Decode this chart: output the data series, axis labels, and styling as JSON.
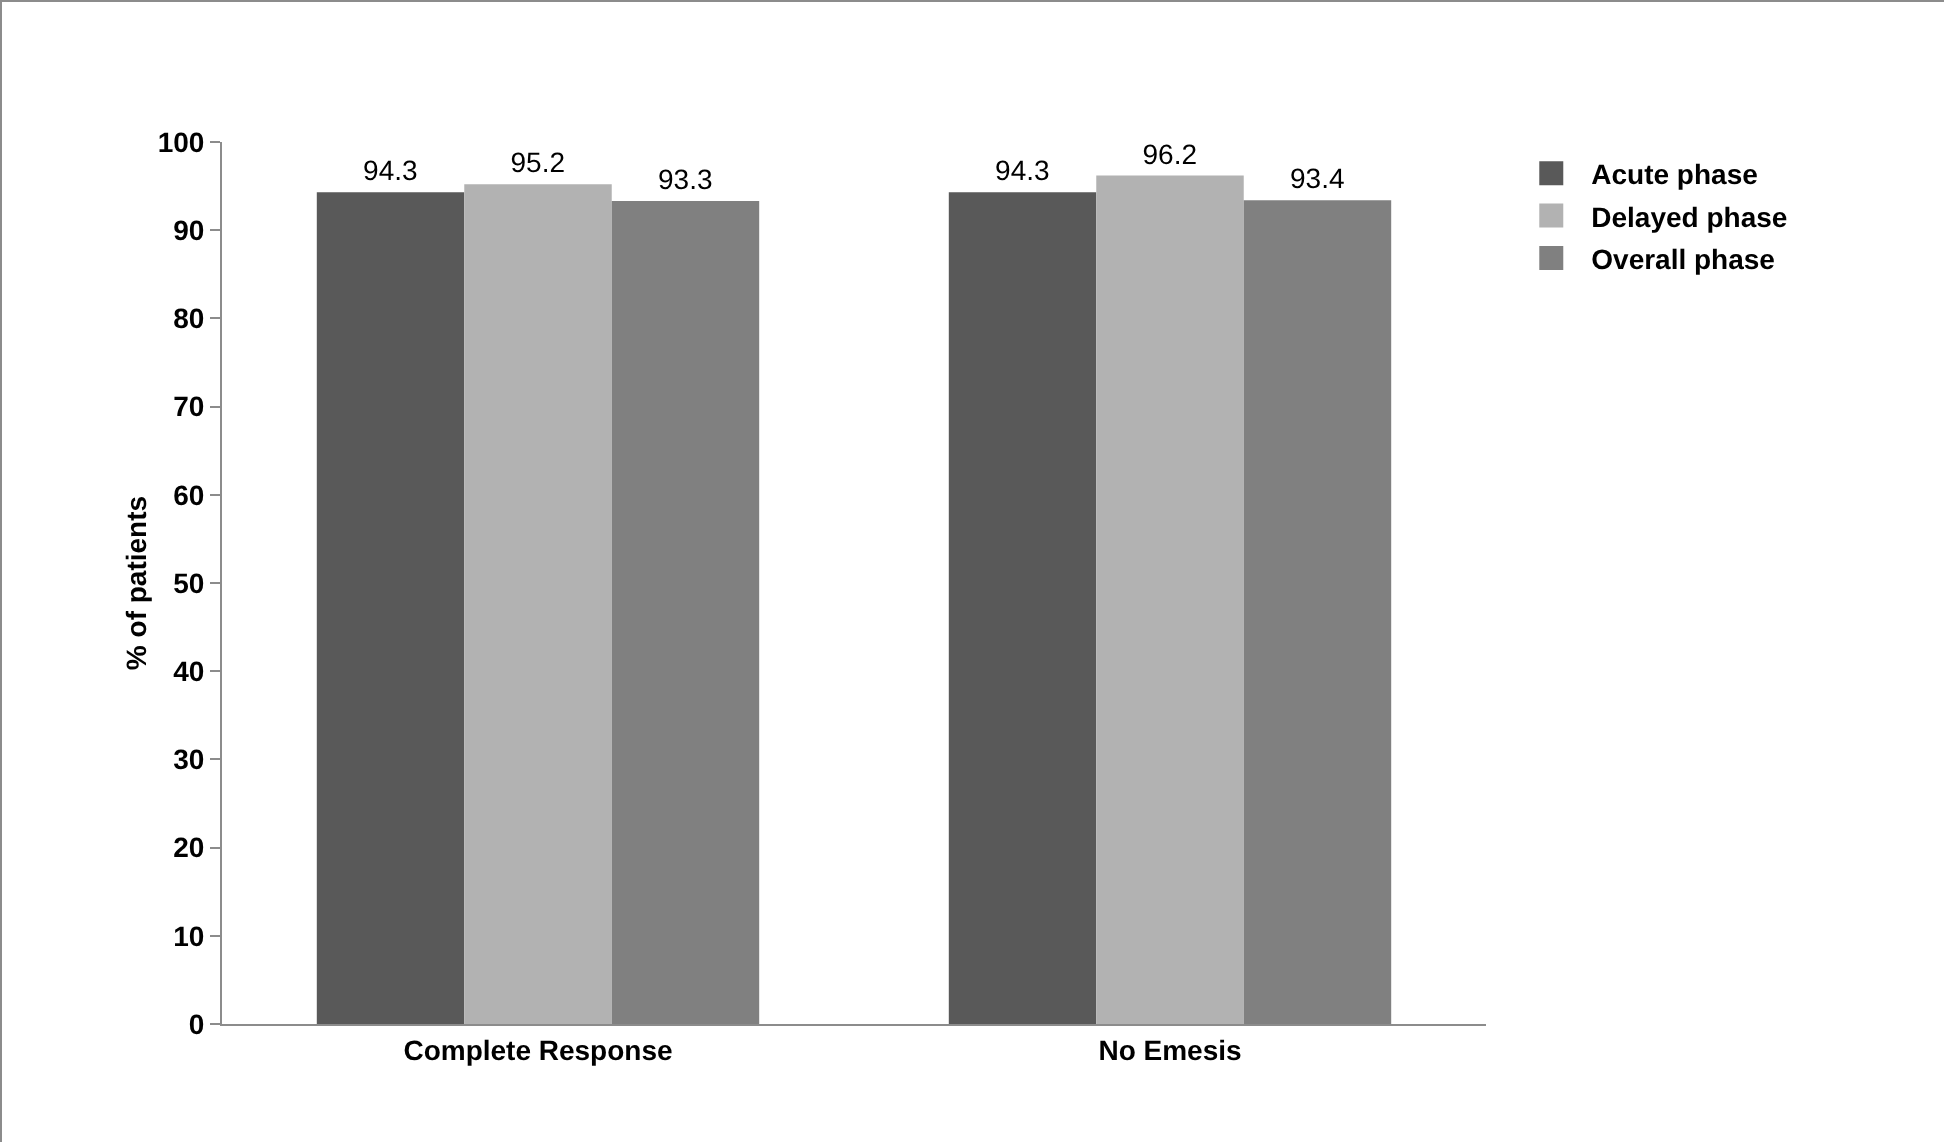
{
  "chart_data": {
    "type": "bar",
    "ylabel": "% of patients",
    "categories": [
      "Complete Response",
      "No Emesis"
    ],
    "series": [
      {
        "name": "Acute phase",
        "color": "#595959",
        "values": [
          94.3,
          94.3
        ]
      },
      {
        "name": "Delayed phase",
        "color": "#b2b2b2",
        "values": [
          95.2,
          96.2
        ]
      },
      {
        "name": "Overall phase",
        "color": "#808080",
        "values": [
          93.3,
          93.4
        ]
      }
    ],
    "ylim": [
      0,
      100
    ],
    "yticks": [
      0,
      10,
      20,
      30,
      40,
      50,
      60,
      70,
      80,
      90,
      100
    ],
    "grid": false,
    "legend": "top right",
    "data_labels": true
  }
}
